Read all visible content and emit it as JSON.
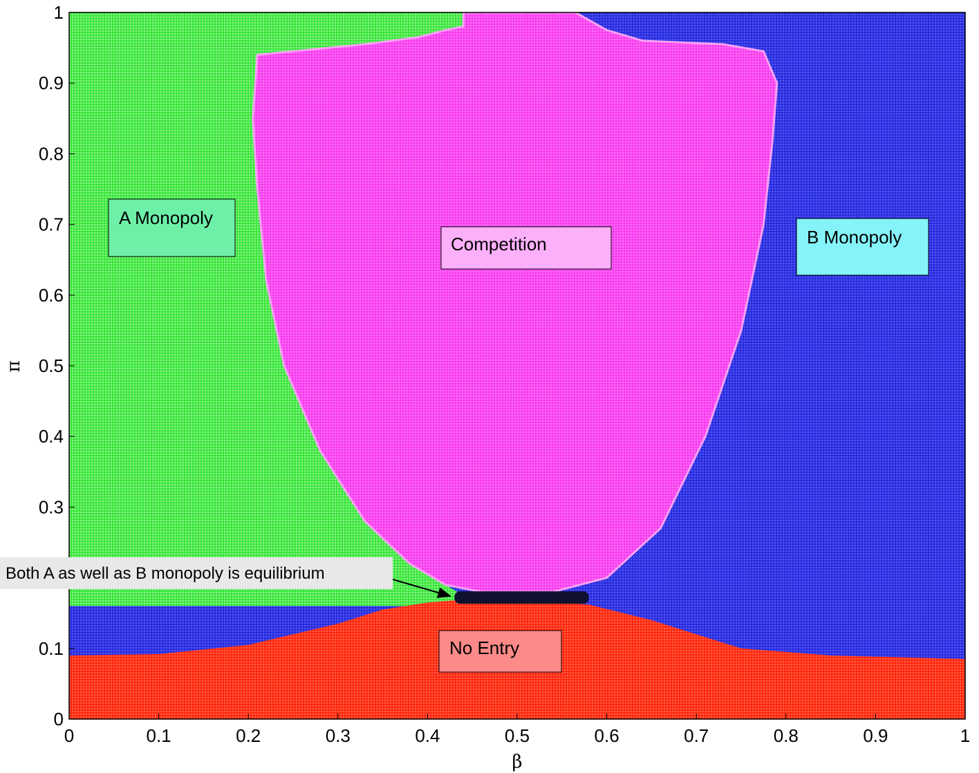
{
  "chart_data": {
    "type": "area",
    "title": "",
    "xlabel": "β",
    "ylabel": "π",
    "xlim": [
      0,
      1
    ],
    "ylim": [
      0,
      1
    ],
    "grid": false,
    "x_ticks": [
      "0",
      "0.1",
      "0.2",
      "0.3",
      "0.4",
      "0.5",
      "0.6",
      "0.7",
      "0.8",
      "0.9",
      "1"
    ],
    "y_ticks": [
      "0",
      "0.1",
      "0.2",
      "0.3",
      "0.4",
      "0.5",
      "0.6",
      "0.7",
      "0.8",
      "0.9",
      "1"
    ],
    "colors": {
      "a_monopoly": "#3ee63e",
      "b_monopoly": "#2a2ee0",
      "competition": "#f840f0",
      "no_entry": "#ff2a10",
      "both": "#101030"
    },
    "regions": [
      {
        "name": "A Monopoly",
        "label_bg": "#6ef0a8"
      },
      {
        "name": "B Monopoly",
        "label_bg": "#84f4fa"
      },
      {
        "name": "Competition",
        "label_bg": "#fcb0fa"
      },
      {
        "name": "No Entry",
        "label_bg": "#fc8a88"
      }
    ],
    "boundaries": {
      "no_entry_top": [
        [
          0,
          0.09
        ],
        [
          0.1,
          0.092
        ],
        [
          0.2,
          0.105
        ],
        [
          0.3,
          0.135
        ],
        [
          0.35,
          0.155
        ],
        [
          0.4,
          0.165
        ],
        [
          0.43,
          0.168
        ],
        [
          0.5,
          0.168
        ],
        [
          0.58,
          0.162
        ],
        [
          0.65,
          0.14
        ],
        [
          0.75,
          0.1
        ],
        [
          0.85,
          0.09
        ],
        [
          1,
          0.085
        ]
      ],
      "competition_outline": [
        [
          0.44,
          0.98
        ],
        [
          0.42,
          0.975
        ],
        [
          0.39,
          0.965
        ],
        [
          0.33,
          0.955
        ],
        [
          0.21,
          0.94
        ],
        [
          0.205,
          0.85
        ],
        [
          0.21,
          0.75
        ],
        [
          0.22,
          0.62
        ],
        [
          0.24,
          0.5
        ],
        [
          0.28,
          0.38
        ],
        [
          0.33,
          0.28
        ],
        [
          0.38,
          0.22
        ],
        [
          0.42,
          0.19
        ],
        [
          0.46,
          0.18
        ],
        [
          0.54,
          0.18
        ],
        [
          0.6,
          0.2
        ],
        [
          0.66,
          0.27
        ],
        [
          0.71,
          0.4
        ],
        [
          0.75,
          0.55
        ],
        [
          0.775,
          0.7
        ],
        [
          0.785,
          0.82
        ],
        [
          0.79,
          0.9
        ],
        [
          0.775,
          0.945
        ],
        [
          0.73,
          0.955
        ],
        [
          0.64,
          0.96
        ],
        [
          0.6,
          0.975
        ],
        [
          0.565,
          1
        ]
      ],
      "competition_top": [
        0.44,
        0.565
      ],
      "both_equilibrium": {
        "beta": [
          0.43,
          0.58
        ],
        "pi": 0.172
      }
    },
    "annotation": {
      "text": "Both A as well as B monopoly is equilibrium",
      "target": [
        0.43,
        0.172
      ]
    }
  }
}
